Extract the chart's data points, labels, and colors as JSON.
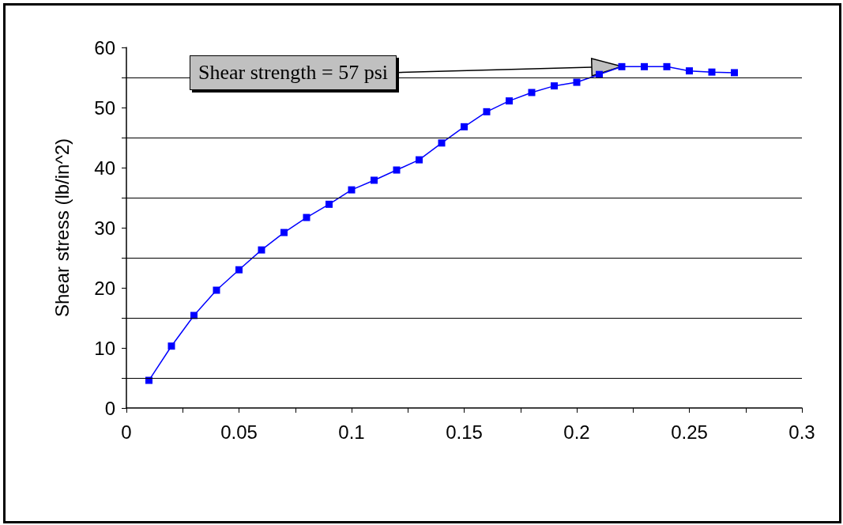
{
  "chart_data": {
    "type": "line",
    "ylabel": "Shear stress (lb/in^2)",
    "x": [
      0.01,
      0.02,
      0.03,
      0.04,
      0.05,
      0.06,
      0.07,
      0.08,
      0.09,
      0.1,
      0.11,
      0.12,
      0.13,
      0.14,
      0.15,
      0.16,
      0.17,
      0.18,
      0.19,
      0.2,
      0.21,
      0.22,
      0.23,
      0.24,
      0.25,
      0.26,
      0.27
    ],
    "series": [
      {
        "color": "#0000ff",
        "values": [
          4.6,
          10.3,
          15.4,
          19.6,
          23.0,
          26.3,
          29.2,
          31.7,
          33.9,
          36.3,
          37.9,
          39.6,
          41.3,
          44.1,
          46.8,
          49.3,
          51.1,
          52.5,
          53.6,
          54.2,
          55.5,
          56.8,
          56.8,
          56.8,
          56.1,
          55.9,
          55.8
        ]
      }
    ],
    "xlim": [
      0,
      0.3
    ],
    "xticks": [
      0,
      {
        "value": 0.025,
        "label": null
      },
      0.05,
      {
        "value": 0.075,
        "label": null
      },
      0.1,
      {
        "value": 0.125,
        "label": null
      },
      0.15,
      {
        "value": 0.175,
        "label": null
      },
      0.2,
      {
        "value": 0.225,
        "label": null
      },
      0.25,
      {
        "value": 0.275,
        "label": null
      },
      0.3
    ],
    "ylim": [
      0,
      60
    ],
    "yticks": [
      0,
      {
        "value": 5,
        "label": null
      },
      10,
      {
        "value": 15,
        "label": null
      },
      20,
      {
        "value": 25,
        "label": null
      },
      30,
      {
        "value": 35,
        "label": null
      },
      40,
      {
        "value": 45,
        "label": null
      },
      50,
      {
        "value": 55,
        "label": null
      },
      60
    ],
    "grid": "y",
    "marker": "square",
    "line_style": "solid",
    "annotations": [
      "Shear strength = 57 psi"
    ]
  }
}
